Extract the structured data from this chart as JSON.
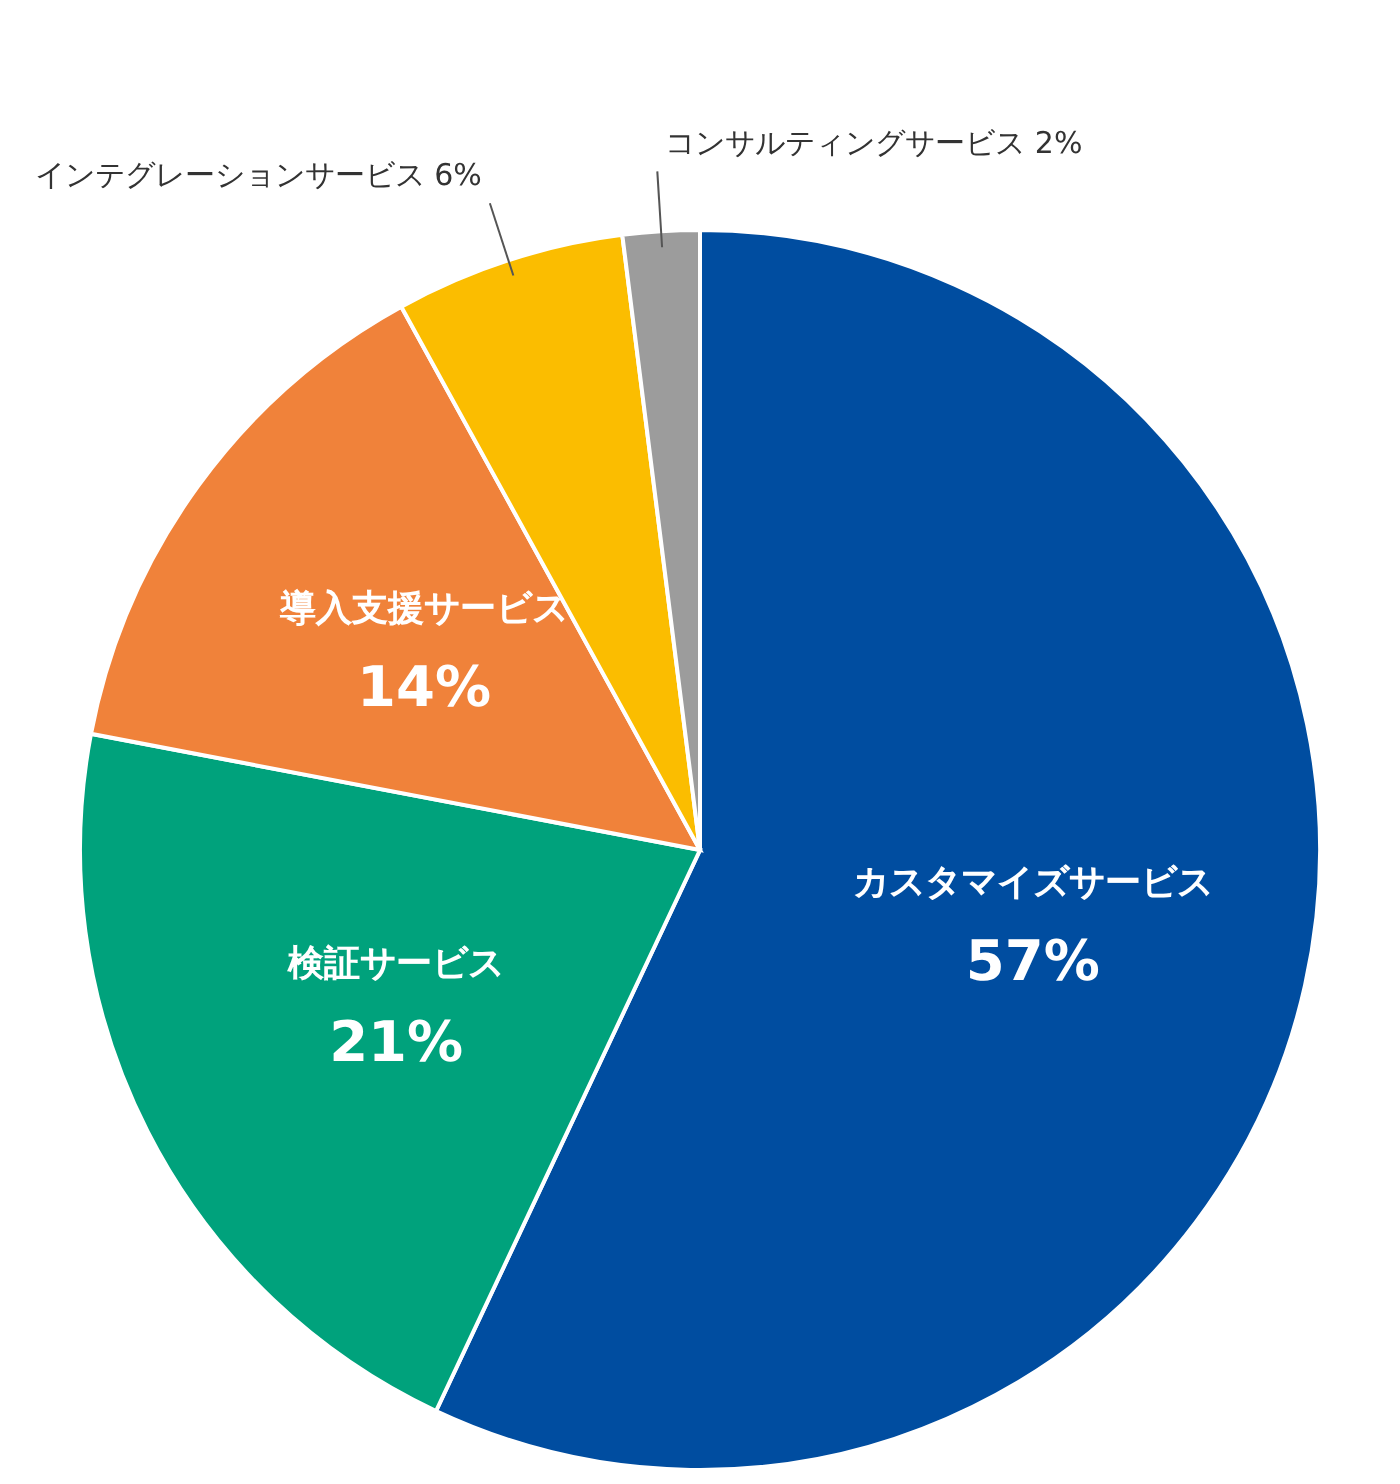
{
  "chart_data": {
    "type": "pie",
    "categories": [
      "カスタマイズサービス",
      "検証サービス",
      "導入支援サービス",
      "インテグレーションサービス",
      "コンサルティングサービス"
    ],
    "values": [
      57,
      21,
      14,
      6,
      2
    ],
    "value_labels": [
      "57%",
      "21%",
      "14%",
      "6%",
      "2%"
    ],
    "colors": [
      "#004da0",
      "#00a27c",
      "#f0823a",
      "#fbbd00",
      "#9c9c9c"
    ]
  }
}
